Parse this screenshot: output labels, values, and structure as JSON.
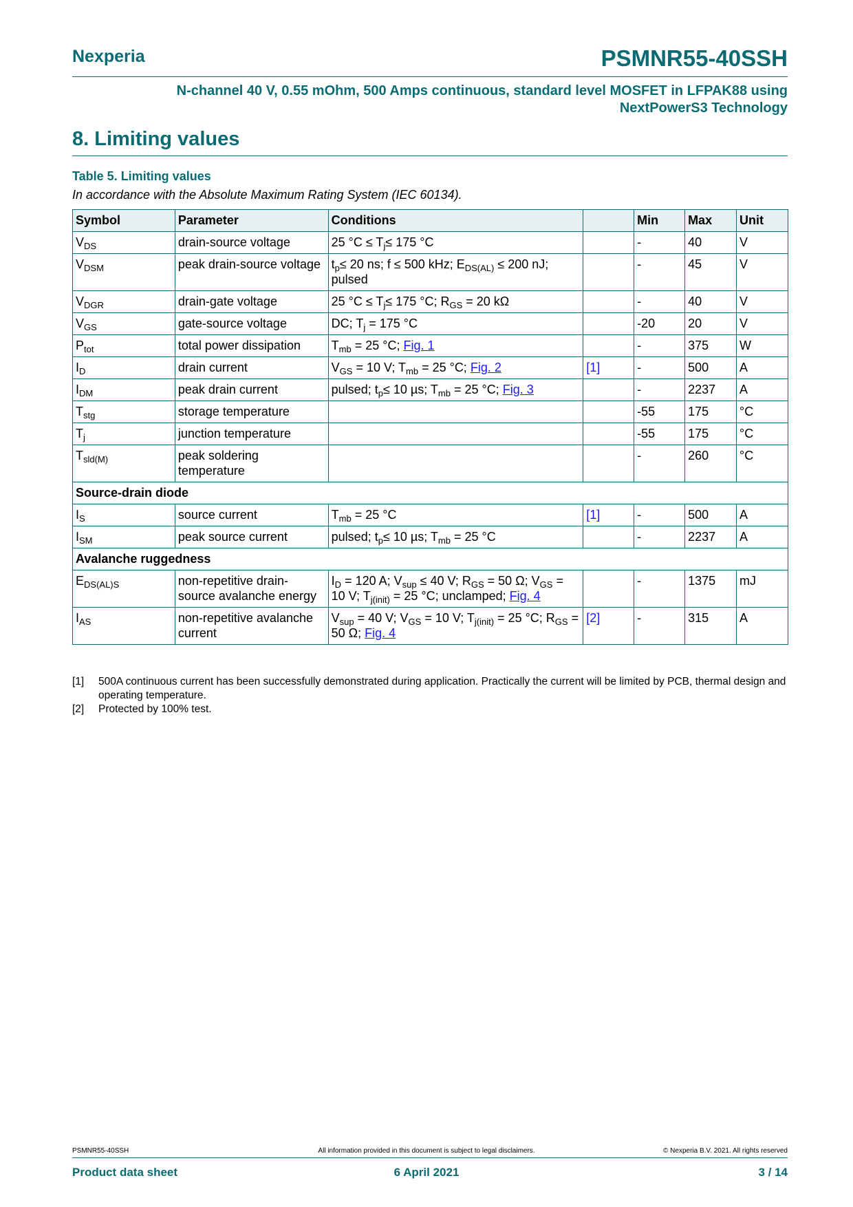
{
  "header": {
    "brand": "Nexperia",
    "part_number": "PSMNR55-40SSH",
    "subtitle_line1": "N-channel 40 V, 0.55 mOhm, 500 Amps continuous, standard level MOSFET in LFPAK88 using",
    "subtitle_line2": "NextPowerS3 Technology"
  },
  "section_title": "8.  Limiting values",
  "table_caption": "Table 5. Limiting values",
  "table_note": "In accordance with the Absolute Maximum Rating System (IEC 60134).",
  "columns": [
    "Symbol",
    "Parameter",
    "Conditions",
    "",
    "Min",
    "Max",
    "Unit"
  ],
  "rows": [
    {
      "sym": "V",
      "sub": "DS",
      "param": "drain-source voltage",
      "cond": [
        [
          "25 °C ≤  T"
        ],
        [
          "j",
          "sub"
        ],
        [
          "≤  175 °C"
        ]
      ],
      "ref": "",
      "min": "-",
      "max": "40",
      "unit": "V"
    },
    {
      "sym": "V",
      "sub": "DSM",
      "param": "peak drain-source voltage",
      "cond": [
        [
          "t"
        ],
        [
          "p",
          "sub"
        ],
        [
          "≤  20 ns; f ≤  500 kHz; E"
        ],
        [
          "DS(AL)",
          "sub"
        ],
        [
          " ≤  200 nJ; pulsed"
        ]
      ],
      "ref": "",
      "min": "-",
      "max": "45",
      "unit": "V"
    },
    {
      "sym": "V",
      "sub": "DGR",
      "param": "drain-gate voltage",
      "cond": [
        [
          "25 °C ≤  T"
        ],
        [
          "j",
          "sub"
        ],
        [
          "≤  175 °C; R"
        ],
        [
          "GS",
          "sub"
        ],
        [
          " = 20 kΩ"
        ]
      ],
      "ref": "",
      "min": "-",
      "max": "40",
      "unit": "V"
    },
    {
      "sym": "V",
      "sub": "GS",
      "param": "gate-source voltage",
      "cond": [
        [
          "DC; T"
        ],
        [
          "j",
          "sub"
        ],
        [
          " = 175 °C"
        ]
      ],
      "ref": "",
      "min": "-20",
      "max": "20",
      "unit": "V"
    },
    {
      "sym": "P",
      "sub": "tot",
      "param": "total power dissipation",
      "cond": [
        [
          "T"
        ],
        [
          "mb",
          "sub"
        ],
        [
          " = 25 °C; "
        ],
        [
          "Fig. 1",
          "link"
        ]
      ],
      "ref": "",
      "min": "-",
      "max": "375",
      "unit": "W"
    },
    {
      "sym": "I",
      "sub": "D",
      "param": "drain current",
      "cond": [
        [
          "V"
        ],
        [
          "GS",
          "sub"
        ],
        [
          " = 10 V; T"
        ],
        [
          "mb",
          "sub"
        ],
        [
          " = 25 °C; "
        ],
        [
          "Fig. 2",
          "link"
        ]
      ],
      "ref": "[1]",
      "min": "-",
      "max": "500",
      "unit": "A"
    },
    {
      "sym": "I",
      "sub": "DM",
      "param": "peak drain current",
      "cond": [
        [
          "pulsed; t"
        ],
        [
          "p",
          "sub"
        ],
        [
          "≤  10 µs; T"
        ],
        [
          "mb",
          "sub"
        ],
        [
          " = 25 °C; "
        ],
        [
          "Fig. 3",
          "link"
        ]
      ],
      "ref": "",
      "min": "-",
      "max": "2237",
      "unit": "A"
    },
    {
      "sym": "T",
      "sub": "stg",
      "param": "storage temperature",
      "cond": [],
      "ref": "",
      "min": "-55",
      "max": "175",
      "unit": "°C"
    },
    {
      "sym": "T",
      "sub": "j",
      "param": "junction temperature",
      "cond": [],
      "ref": "",
      "min": "-55",
      "max": "175",
      "unit": "°C"
    },
    {
      "sym": "T",
      "sub": "sld(M)",
      "param": "peak soldering temperature",
      "cond": [],
      "ref": "",
      "min": "-",
      "max": "260",
      "unit": "°C"
    },
    {
      "group": "Source-drain diode"
    },
    {
      "sym": "I",
      "sub": "S",
      "param": "source current",
      "cond": [
        [
          "T"
        ],
        [
          "mb",
          "sub"
        ],
        [
          " = 25 °C"
        ]
      ],
      "ref": "[1]",
      "min": "-",
      "max": "500",
      "unit": "A"
    },
    {
      "sym": "I",
      "sub": "SM",
      "param": "peak source current",
      "cond": [
        [
          "pulsed; t"
        ],
        [
          "p",
          "sub"
        ],
        [
          "≤  10 µs; T"
        ],
        [
          "mb",
          "sub"
        ],
        [
          " = 25 °C"
        ]
      ],
      "ref": "",
      "min": "-",
      "max": "2237",
      "unit": "A"
    },
    {
      "group": "Avalanche ruggedness"
    },
    {
      "sym": "E",
      "sub": "DS(AL)S",
      "param": "non-repetitive drain-source avalanche energy",
      "cond": [
        [
          "I"
        ],
        [
          "D",
          "sub"
        ],
        [
          " = 120 A; V"
        ],
        [
          "sup",
          "sub"
        ],
        [
          " ≤  40 V; R"
        ],
        [
          "GS",
          "sub"
        ],
        [
          " = 50 Ω; V"
        ],
        [
          "GS",
          "sub"
        ],
        [
          " = 10 V; T"
        ],
        [
          "j(init)",
          "sub"
        ],
        [
          " = 25 °C; unclamped; "
        ],
        [
          "Fig. 4",
          "link"
        ]
      ],
      "ref": "",
      "min": "-",
      "max": "1375",
      "unit": "mJ"
    },
    {
      "sym": "I",
      "sub": "AS",
      "param": "non-repetitive avalanche current",
      "cond": [
        [
          "V"
        ],
        [
          "sup",
          "sub"
        ],
        [
          " = 40 V; V"
        ],
        [
          "GS",
          "sub"
        ],
        [
          " = 10 V; T"
        ],
        [
          "j(init)",
          "sub"
        ],
        [
          " = 25 °C; R"
        ],
        [
          "GS",
          "sub"
        ],
        [
          " = 50 Ω; "
        ],
        [
          "Fig. 4",
          "link"
        ]
      ],
      "ref": "[2]",
      "min": "-",
      "max": "315",
      "unit": "A"
    }
  ],
  "footnotes": [
    {
      "mark": "[1]",
      "text": "500A continuous current has been successfully demonstrated during application. Practically the current will be limited by PCB, thermal design and operating temperature."
    },
    {
      "mark": "[2]",
      "text": "Protected by 100% test."
    }
  ],
  "footer": {
    "part": "PSMNR55-40SSH",
    "disclaimer": "All information provided in this document is subject to legal disclaimers.",
    "copyright": "© Nexperia B.V. 2021. All rights reserved",
    "doc_type": "Product data sheet",
    "date": "6 April 2021",
    "page": "3 / 14"
  },
  "colors": {
    "brand": "#0a6b73",
    "link": "#1a1aff",
    "header_bg": "#e6f0f0"
  }
}
